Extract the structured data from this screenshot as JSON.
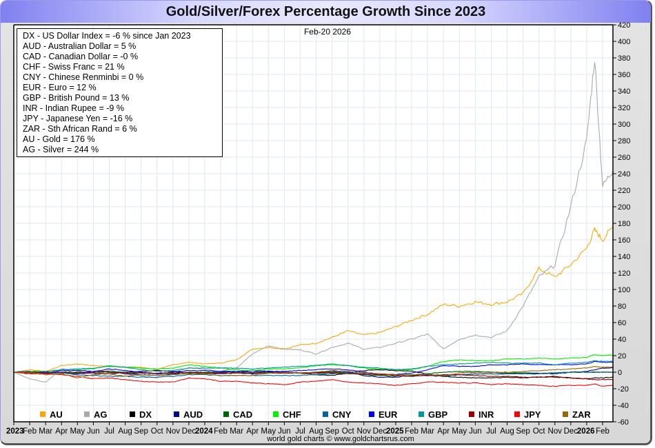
{
  "title": "Gold/Silver/Forex Percentage Growth Since 2023",
  "date_label": "Feb-20  2026",
  "summary_box": [
    "DX - US Dollar Index = -6 % since Jan 2023",
    "AUD - Australian Dollar = 5 %",
    "CAD - Canadian Dollar = -0 %",
    "CHF - Swiss Franc = 21 %",
    "CNY - Chinese Renminbi = 0 %",
    "EUR - Euro = 12 %",
    "GBP - British Pound = 13 %",
    "INR - Indian Rupee = -9 %",
    "JPY - Japanese Yen = -16 %",
    "ZAR - Sth African Rand = 6 %",
    "AU - Gold = 176 %",
    "AG - Silver = 244 %"
  ],
  "credit": "world gold charts © www.goldchartsrus.com",
  "chart_data": {
    "type": "line",
    "title": "Gold/Silver/Forex Percentage Growth Since 2023",
    "xlabel": "",
    "ylabel": "",
    "ylim": [
      -60,
      420
    ],
    "yticks": [
      420,
      400,
      380,
      360,
      340,
      320,
      300,
      280,
      260,
      240,
      220,
      200,
      180,
      160,
      140,
      120,
      100,
      80,
      60,
      40,
      20,
      0,
      -20,
      -40,
      -60
    ],
    "grid": true,
    "legend_position": "bottom",
    "x_tick_labels": [
      {
        "label": "2023",
        "month_index": 0,
        "year": true
      },
      {
        "label": "Feb",
        "month_index": 1
      },
      {
        "label": "Mar",
        "month_index": 2
      },
      {
        "label": "Apr",
        "month_index": 3
      },
      {
        "label": "May",
        "month_index": 4
      },
      {
        "label": "Jun",
        "month_index": 5
      },
      {
        "label": "Jul",
        "month_index": 6
      },
      {
        "label": "Aug",
        "month_index": 7
      },
      {
        "label": "Sep",
        "month_index": 8
      },
      {
        "label": "Oct",
        "month_index": 9
      },
      {
        "label": "Nov",
        "month_index": 10
      },
      {
        "label": "Dec",
        "month_index": 11
      },
      {
        "label": "2024",
        "month_index": 12,
        "year": true
      },
      {
        "label": "Feb",
        "month_index": 13
      },
      {
        "label": "Mar",
        "month_index": 14
      },
      {
        "label": "Apr",
        "month_index": 15
      },
      {
        "label": "May",
        "month_index": 16
      },
      {
        "label": "Jun",
        "month_index": 17
      },
      {
        "label": "Jul",
        "month_index": 18
      },
      {
        "label": "Aug",
        "month_index": 19
      },
      {
        "label": "Sep",
        "month_index": 20
      },
      {
        "label": "Oct",
        "month_index": 21
      },
      {
        "label": "Nov",
        "month_index": 22
      },
      {
        "label": "Dec",
        "month_index": 23
      },
      {
        "label": "2025",
        "month_index": 24,
        "year": true
      },
      {
        "label": "Feb",
        "month_index": 25
      },
      {
        "label": "Mar",
        "month_index": 26
      },
      {
        "label": "Apr",
        "month_index": 27
      },
      {
        "label": "May",
        "month_index": 28
      },
      {
        "label": "Jun",
        "month_index": 29
      },
      {
        "label": "Jul",
        "month_index": 30
      },
      {
        "label": "Aug",
        "month_index": 31
      },
      {
        "label": "Sep",
        "month_index": 32
      },
      {
        "label": "Oct",
        "month_index": 33
      },
      {
        "label": "Nov",
        "month_index": 34
      },
      {
        "label": "Dec",
        "month_index": 35
      },
      {
        "label": "2026",
        "month_index": 36,
        "year": true
      },
      {
        "label": "Feb",
        "month_index": 37
      }
    ],
    "x_range_months": [
      0,
      37.65
    ],
    "x_points_month_index": [
      0,
      1,
      2,
      3,
      4,
      5,
      6,
      7,
      8,
      9,
      10,
      11,
      12,
      13,
      14,
      15,
      16,
      17,
      18,
      19,
      20,
      21,
      22,
      23,
      24,
      25,
      26,
      27,
      28,
      29,
      30,
      31,
      32,
      33,
      34,
      35,
      36,
      36.5,
      37,
      37.65
    ],
    "series": [
      {
        "name": "AU",
        "color": "#f5a90a",
        "values": [
          0,
          3,
          1,
          8,
          10,
          8,
          7,
          6,
          6,
          3,
          9,
          12,
          10,
          11,
          15,
          28,
          30,
          28,
          33,
          35,
          42,
          50,
          45,
          48,
          55,
          63,
          70,
          82,
          80,
          85,
          82,
          85,
          95,
          125,
          115,
          130,
          150,
          172,
          160,
          176
        ]
      },
      {
        "name": "AG",
        "color": "#aaaaaa",
        "values": [
          0,
          -8,
          -12,
          4,
          2,
          -3,
          3,
          -2,
          -4,
          -7,
          0,
          5,
          4,
          1,
          5,
          22,
          32,
          28,
          27,
          22,
          30,
          35,
          28,
          30,
          35,
          40,
          46,
          28,
          40,
          45,
          42,
          50,
          80,
          115,
          130,
          200,
          280,
          380,
          225,
          244
        ]
      },
      {
        "name": "DX",
        "color": "#000000",
        "values": [
          0,
          -1,
          0,
          -1,
          -1,
          -1,
          -2,
          0,
          1,
          2,
          1,
          -1,
          -1,
          0,
          1,
          2,
          1,
          0,
          -1,
          -3,
          -4,
          -1,
          2,
          3,
          2,
          1,
          -2,
          -5,
          -6,
          -7,
          -7,
          -6,
          -7,
          -6,
          -5,
          -7,
          -8,
          -7,
          -7,
          -6
        ]
      },
      {
        "name": "AUD",
        "color": "#00008b",
        "values": [
          0,
          1,
          -1,
          -1,
          -2,
          0,
          1,
          -2,
          -3,
          -4,
          -2,
          0,
          -1,
          -2,
          -1,
          -2,
          0,
          0,
          -1,
          -1,
          1,
          0,
          -4,
          -6,
          -6,
          -4,
          -4,
          -5,
          -3,
          -2,
          -2,
          -2,
          -1,
          -1,
          -2,
          0,
          1,
          3,
          5,
          5
        ]
      },
      {
        "name": "CAD",
        "color": "#006400",
        "values": [
          0,
          -1,
          -2,
          0,
          -1,
          1,
          1,
          0,
          -1,
          -2,
          -1,
          0,
          0,
          0,
          0,
          -1,
          0,
          -1,
          -1,
          0,
          0,
          -1,
          -3,
          -4,
          -5,
          -4,
          -2,
          0,
          1,
          1,
          0,
          -1,
          -1,
          -2,
          -1,
          0,
          0,
          0,
          0,
          0
        ]
      },
      {
        "name": "CHF",
        "color": "#00ee00",
        "values": [
          0,
          1,
          1,
          3,
          3,
          4,
          8,
          6,
          5,
          4,
          5,
          9,
          7,
          5,
          3,
          2,
          4,
          4,
          5,
          8,
          9,
          8,
          5,
          4,
          3,
          3,
          7,
          13,
          15,
          14,
          14,
          16,
          16,
          17,
          16,
          17,
          18,
          21,
          20,
          21
        ]
      },
      {
        "name": "CNY",
        "color": "#006699",
        "values": [
          0,
          1,
          -1,
          -1,
          -3,
          -4,
          -5,
          -5,
          -6,
          -6,
          -5,
          -3,
          -3,
          -4,
          -4,
          -4,
          -4,
          -4,
          -4,
          -3,
          -2,
          -1,
          -2,
          -3,
          -3,
          -3,
          -3,
          -4,
          -3,
          -2,
          -2,
          -2,
          -2,
          -2,
          -1,
          0,
          0,
          0,
          0,
          0
        ]
      },
      {
        "name": "EUR",
        "color": "#0000ff",
        "values": [
          0,
          0,
          -1,
          2,
          2,
          1,
          4,
          2,
          0,
          -2,
          0,
          2,
          2,
          1,
          1,
          0,
          1,
          1,
          2,
          3,
          4,
          3,
          0,
          -2,
          -3,
          -1,
          3,
          8,
          7,
          7,
          9,
          9,
          10,
          9,
          9,
          9,
          10,
          13,
          12,
          12
        ]
      },
      {
        "name": "GBP",
        "color": "#009999",
        "values": [
          0,
          0,
          1,
          3,
          4,
          5,
          7,
          6,
          3,
          1,
          2,
          5,
          5,
          5,
          5,
          4,
          5,
          6,
          7,
          8,
          10,
          8,
          6,
          5,
          3,
          4,
          7,
          9,
          10,
          11,
          12,
          11,
          11,
          11,
          9,
          11,
          12,
          14,
          13,
          13
        ]
      },
      {
        "name": "INR",
        "color": "#990000",
        "values": [
          0,
          0,
          0,
          0,
          0,
          0,
          0,
          -1,
          -1,
          -1,
          -1,
          -1,
          -1,
          -1,
          -1,
          -1,
          -1,
          -1,
          -1,
          -1,
          -1,
          -2,
          -2,
          -3,
          -4,
          -5,
          -4,
          -3,
          -3,
          -4,
          -5,
          -5,
          -6,
          -6,
          -6,
          -7,
          -8,
          -9,
          -9,
          -9
        ]
      },
      {
        "name": "JPY",
        "color": "#ff0000",
        "values": [
          0,
          -2,
          -2,
          -3,
          -5,
          -8,
          -7,
          -9,
          -11,
          -12,
          -12,
          -7,
          -8,
          -11,
          -11,
          -13,
          -14,
          -15,
          -12,
          -11,
          -9,
          -12,
          -13,
          -14,
          -16,
          -14,
          -12,
          -12,
          -13,
          -13,
          -15,
          -14,
          -15,
          -16,
          -17,
          -16,
          -16,
          -14,
          -17,
          -16
        ]
      },
      {
        "name": "ZAR",
        "color": "#996600",
        "values": [
          0,
          0,
          -3,
          -2,
          -7,
          -3,
          -2,
          -5,
          -3,
          -4,
          -3,
          -2,
          -2,
          -4,
          -4,
          -4,
          -1,
          0,
          -1,
          0,
          2,
          1,
          -1,
          -2,
          -3,
          -3,
          -2,
          -5,
          -1,
          0,
          0,
          0,
          1,
          2,
          3,
          4,
          5,
          7,
          6,
          6
        ]
      }
    ]
  }
}
